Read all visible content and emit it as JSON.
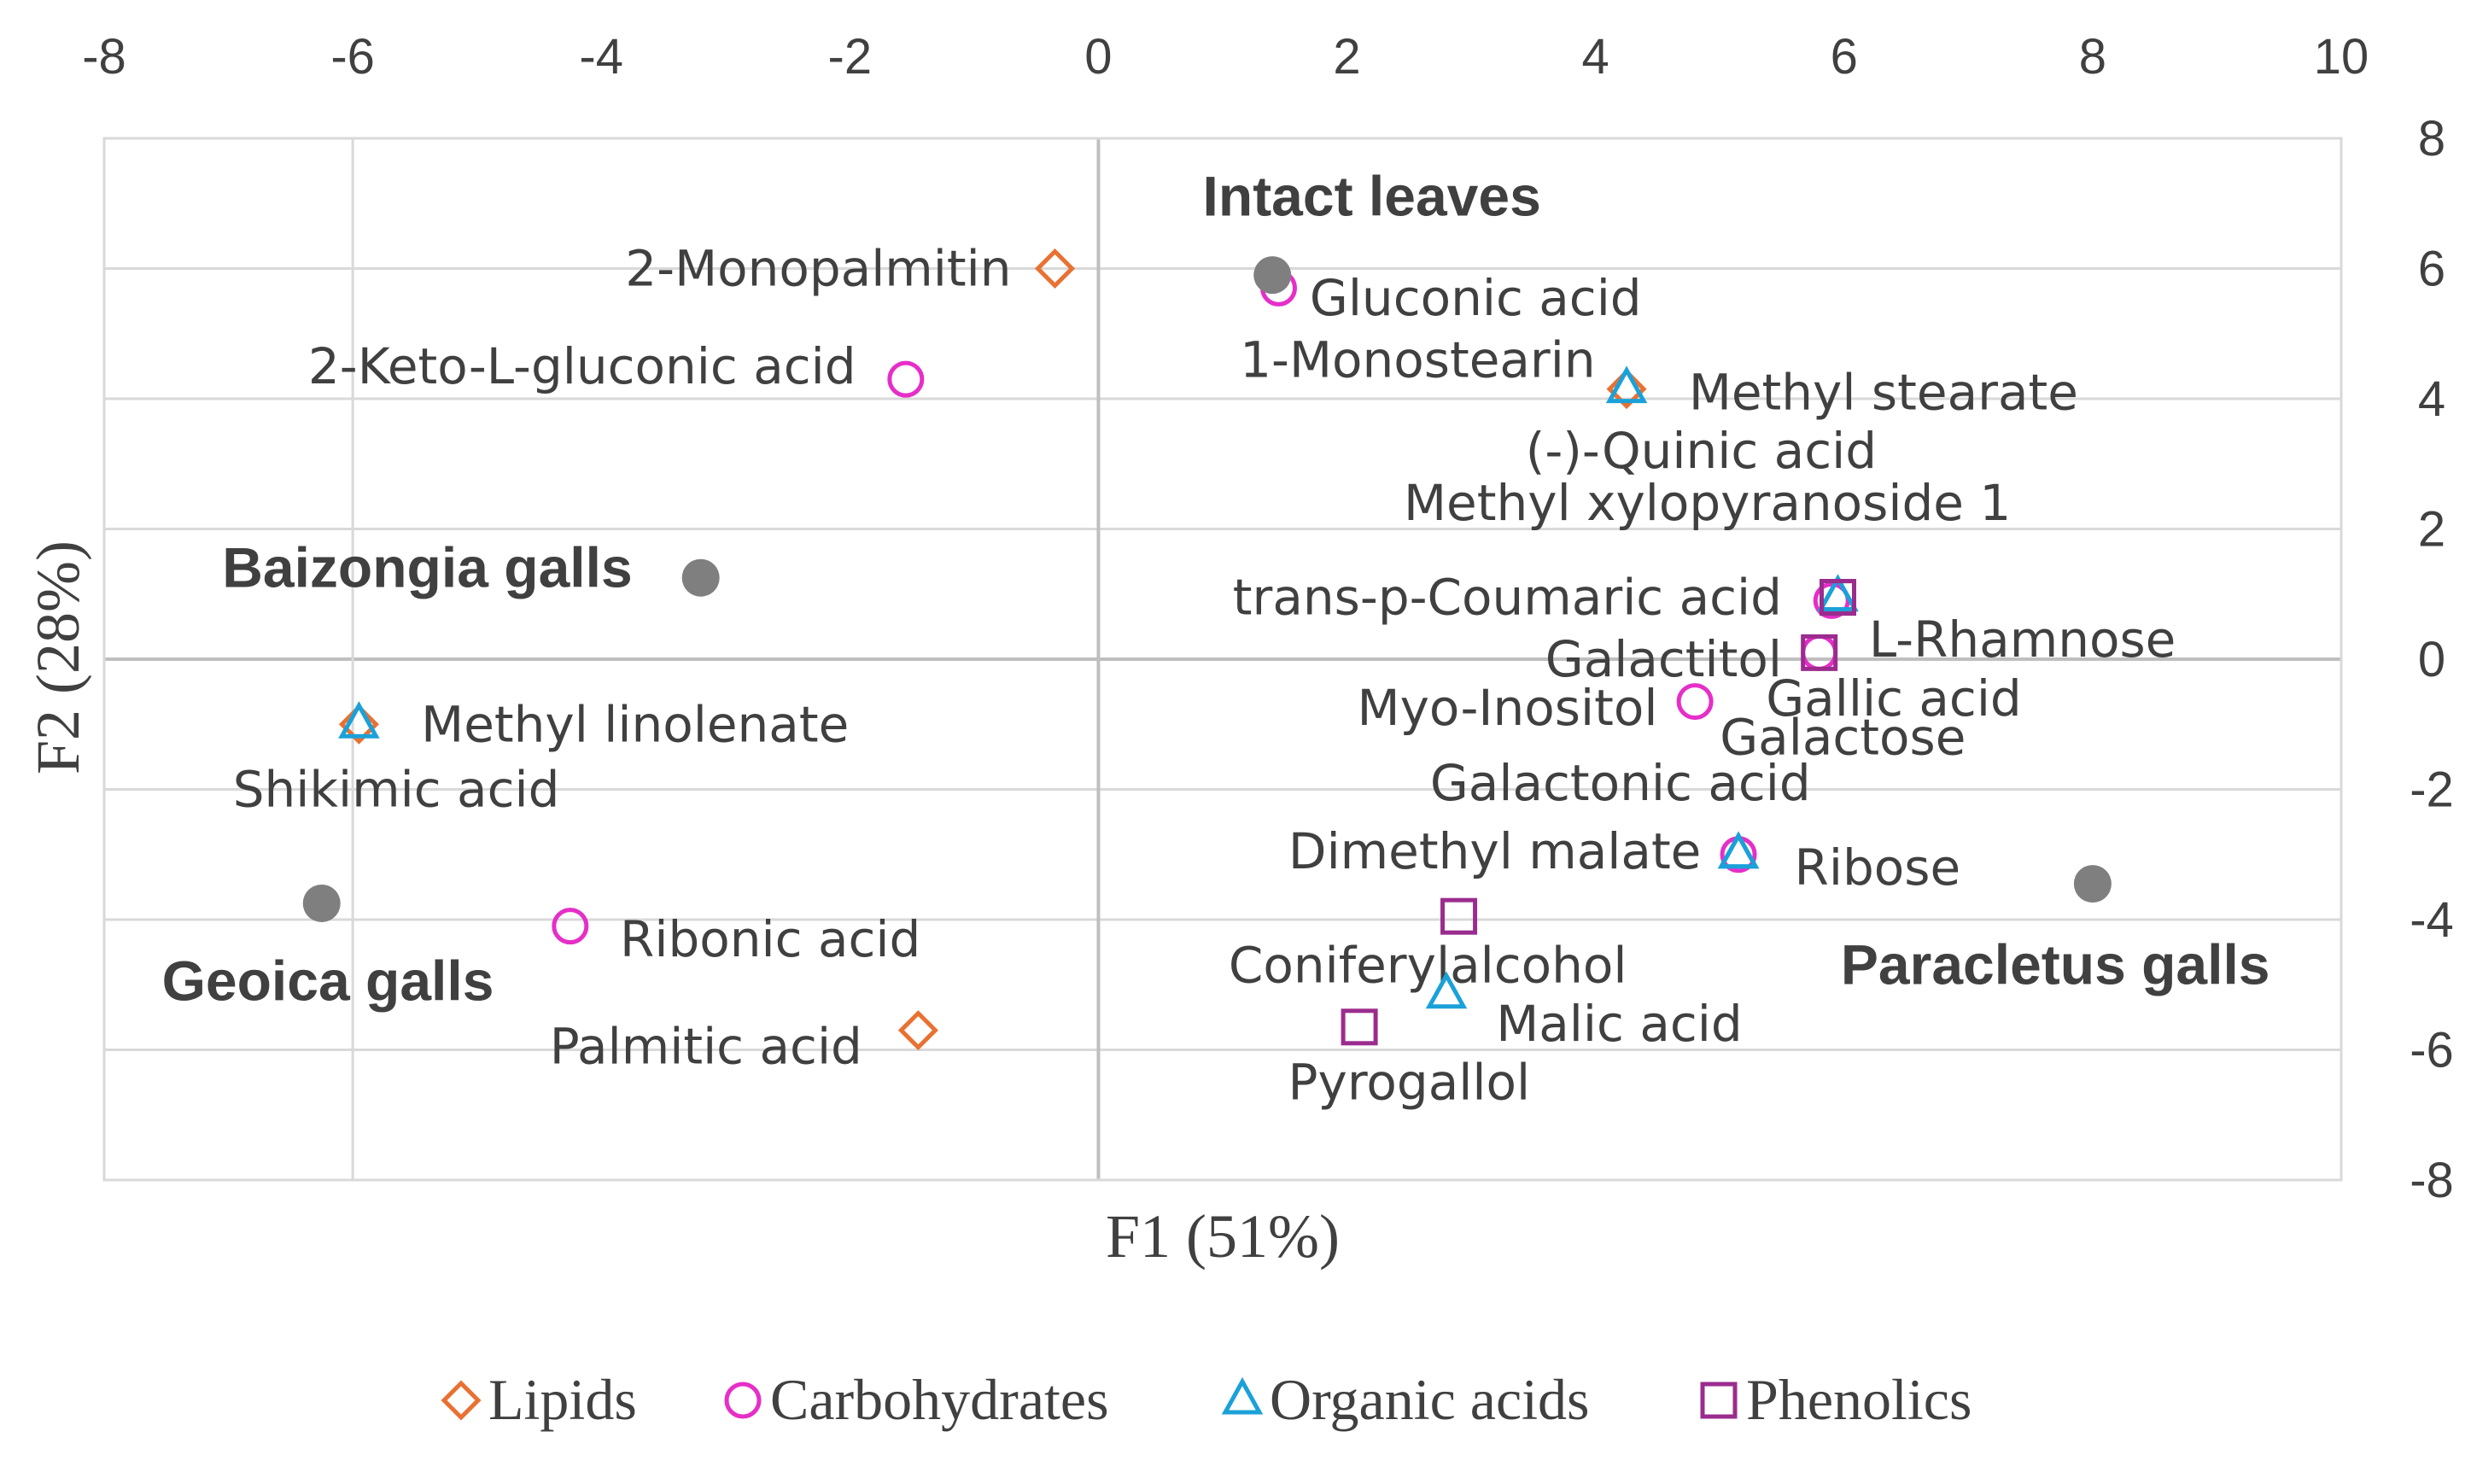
{
  "chart_data": {
    "type": "scatter",
    "xlabel": "F1 (51%)",
    "ylabel": "F2 (28%)",
    "xlim": [
      -8,
      10
    ],
    "ylim": [
      -8,
      8
    ],
    "x_ticks": [
      -8,
      -6,
      -4,
      -2,
      0,
      2,
      4,
      6,
      8,
      10
    ],
    "y_ticks": [
      8,
      6,
      4,
      2,
      0,
      -2,
      -4,
      -6,
      -8
    ],
    "x_tick_position": "top",
    "y_tick_position": "right",
    "grid": true,
    "legend_position": "bottom",
    "colors": {
      "Lipids": "#E97132",
      "Carbohydrates": "#E62EC8",
      "Organic acids": "#1BA1D9",
      "Phenolics": "#9B2C8E",
      "Samples": "#7F7F7F"
    },
    "legend": [
      {
        "name": "Lipids",
        "marker": "diamond"
      },
      {
        "name": "Carbohydrates",
        "marker": "circle"
      },
      {
        "name": "Organic acids",
        "marker": "triangle"
      },
      {
        "name": "Phenolics",
        "marker": "square"
      }
    ],
    "samples": [
      {
        "label": "Intact leaves",
        "x": 1.4,
        "y": 5.9,
        "label_x": 2.2,
        "label_y": 7.1
      },
      {
        "label": "Baizongia galls",
        "x": -3.2,
        "y": 1.25,
        "label_x": -5.4,
        "label_y": 1.4
      },
      {
        "label": "Geoica galls",
        "x": -6.25,
        "y": -3.75,
        "label_x": -6.2,
        "label_y": -4.95
      },
      {
        "label": "Paracletus galls",
        "x": 8.0,
        "y": -3.45,
        "label_x": 7.7,
        "label_y": -4.7
      }
    ],
    "series": [
      {
        "name": "Lipids",
        "marker": "diamond",
        "points": [
          {
            "label": "2-Monopalmitin",
            "x": -0.35,
            "y": 6.0,
            "anchor": "end",
            "label_x": -0.7,
            "label_y": 6.0
          },
          {
            "label": "1-Monostearin",
            "x": 4.25,
            "y": 4.15,
            "anchor": "end",
            "label_x": 4.0,
            "label_y": 4.6
          },
          {
            "label": "Methyl linolenate",
            "x": -5.95,
            "y": -1.0,
            "anchor": "start",
            "label_x": -5.45,
            "label_y": -1.0
          },
          {
            "label": "Palmitic acid",
            "x": -1.45,
            "y": -5.7,
            "anchor": "end",
            "label_x": -1.9,
            "label_y": -5.95
          }
        ]
      },
      {
        "name": "Carbohydrates",
        "marker": "circle",
        "points": [
          {
            "label": "Gluconic acid",
            "x": 1.45,
            "y": 5.7,
            "anchor": "start",
            "label_x": 1.7,
            "label_y": 5.55
          },
          {
            "label": "2-Keto-L-gluconic acid",
            "x": -1.55,
            "y": 4.3,
            "anchor": "end",
            "label_x": -1.95,
            "label_y": 4.5
          },
          {
            "label": "Myo-Inositol",
            "x": 4.8,
            "y": -0.65,
            "anchor": "end",
            "label_x": 4.5,
            "label_y": -0.75
          },
          {
            "label": "Galactitol",
            "x": 5.8,
            "y": 0.1,
            "anchor": "end",
            "label_x": 5.5,
            "label_y": 0.0
          },
          {
            "label": "Galactose",
            "x": 5.9,
            "y": 0.9,
            "anchor": "start",
            "label_x": 5.0,
            "label_y": -1.2
          },
          {
            "label": "Ribose",
            "x": 5.15,
            "y": -3.0,
            "anchor": "start",
            "label_x": 5.6,
            "label_y": -3.2
          },
          {
            "label": "Ribonic acid",
            "x": -4.25,
            "y": -4.1,
            "anchor": "start",
            "label_x": -3.85,
            "label_y": -4.3
          }
        ]
      },
      {
        "name": "Organic acids",
        "marker": "triangle",
        "points": [
          {
            "label": "Methyl stearate",
            "x": 4.25,
            "y": 4.15,
            "anchor": "start",
            "label_x": 4.75,
            "label_y": 4.1
          },
          {
            "label": "(-)-Quinic acid",
            "x": 5.95,
            "y": 0.95,
            "anchor": "middle",
            "label_x": 4.85,
            "label_y": 3.2
          },
          {
            "label": "Gallic acid",
            "x": 5.95,
            "y": 0.95,
            "anchor": "middle",
            "label_x": 6.4,
            "label_y": -0.6
          },
          {
            "label": "Galactonic acid",
            "x": 5.15,
            "y": -3.0,
            "anchor": "middle",
            "label_x": 4.2,
            "label_y": -1.9
          },
          {
            "label": "Dimethyl malate",
            "x": 5.15,
            "y": -3.0,
            "anchor": "end",
            "label_x": 4.85,
            "label_y": -2.95
          },
          {
            "label": "Shikimic acid",
            "x": -5.95,
            "y": -1.0,
            "anchor": "middle",
            "label_x": -5.65,
            "label_y": -2.0
          },
          {
            "label": "Malic acid",
            "x": 2.8,
            "y": -5.15,
            "anchor": "start",
            "label_x": 3.2,
            "label_y": -5.6
          }
        ]
      },
      {
        "name": "Phenolics",
        "marker": "square",
        "points": [
          {
            "label": "Methyl xylopyranoside 1",
            "x": 5.95,
            "y": 0.95,
            "anchor": "middle",
            "label_x": 4.9,
            "label_y": 2.4
          },
          {
            "label": "trans-p-Coumaric acid",
            "x": 5.95,
            "y": 0.95,
            "anchor": "end",
            "label_x": 5.5,
            "label_y": 0.95
          },
          {
            "label": "L-Rhamnose",
            "x": 5.8,
            "y": 0.1,
            "anchor": "start",
            "label_x": 6.2,
            "label_y": 0.3
          },
          {
            "label": "Coniferylalcohol",
            "x": 2.9,
            "y": -3.95,
            "anchor": "middle",
            "label_x": 2.65,
            "label_y": -4.7
          },
          {
            "label": "Pyrogallol",
            "x": 2.1,
            "y": -5.65,
            "anchor": "middle",
            "label_x": 2.5,
            "label_y": -6.5
          }
        ]
      }
    ]
  }
}
